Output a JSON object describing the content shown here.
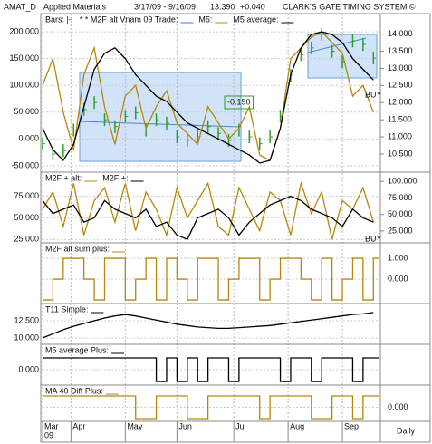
{
  "header": {
    "symbol": "AMAT_D",
    "name": "Applied Materials",
    "range": "3/17/09 - 9/16/09",
    "last": "13.390",
    "change": "+0.040",
    "system": "CLARK'S GATE TIMING SYSTEM ©"
  },
  "x_axis": {
    "x": [
      0,
      4,
      8,
      12,
      16,
      20,
      24,
      28,
      32,
      36,
      40,
      44,
      48,
      52,
      56,
      60,
      64,
      68,
      72,
      76,
      80,
      84,
      88,
      92,
      96,
      100,
      104,
      108,
      112,
      116,
      120,
      124,
      128
    ],
    "xlim": [
      0,
      130
    ],
    "xticks": [
      {
        "value": 0,
        "label": "Mar"
      },
      {
        "value": 11,
        "label": "Apr"
      },
      {
        "value": 32,
        "label": "May"
      },
      {
        "value": 52,
        "label": "Jun"
      },
      {
        "value": 74,
        "label": "Jul"
      },
      {
        "value": 95,
        "label": "Aug"
      },
      {
        "value": 116,
        "label": "Sep"
      }
    ],
    "year": "09",
    "period": "Daily",
    "grid": true
  },
  "chart_data": [
    {
      "type": "line",
      "ylim": [
        -62,
        234
      ],
      "ytick_side": "left",
      "yticks": [
        {
          "value": 200,
          "label": "200.000"
        },
        {
          "value": 150,
          "label": "150.000"
        },
        {
          "value": 100,
          "label": "100.000"
        },
        {
          "value": 50,
          "label": "50.000"
        },
        {
          "value": 0,
          "label": "0.000"
        },
        {
          "value": -50,
          "label": "-50.000"
        }
      ],
      "y2lim": [
        9.97,
        14.6
      ],
      "y2ticks": [
        {
          "value": 14,
          "label": "14.000"
        },
        {
          "value": 13.5,
          "label": "13.500"
        },
        {
          "value": 13,
          "label": "13.000"
        },
        {
          "value": 12.5,
          "label": "12.500"
        },
        {
          "value": 12,
          "label": "12.000"
        },
        {
          "value": 11.5,
          "label": "11.500"
        },
        {
          "value": 11,
          "label": "11.000"
        },
        {
          "value": 10.5,
          "label": "10.500"
        }
      ],
      "legend_extra": [
        "* * M2F alt Vnam 09 Trade:"
      ],
      "annotations": [
        "-0.190",
        "BUY"
      ],
      "series": [
        {
          "name": "Bars: |-",
          "style": "bars",
          "axis": "y2",
          "color": "#2e9e2e",
          "values": [
            10.8,
            10.5,
            10.6,
            11.2,
            11.8,
            12.0,
            11.5,
            11.3,
            11.6,
            11.7,
            11.2,
            11.5,
            11.4,
            11.0,
            10.9,
            11.0,
            11.3,
            11.1,
            10.9,
            11.2,
            11.0,
            10.8,
            11.0,
            11.6,
            12.8,
            13.4,
            13.6,
            14.0,
            13.5,
            13.2,
            13.8,
            13.7,
            13.3
          ]
        },
        {
          "name": "M5:",
          "style": "line",
          "color": "#b8860b",
          "values": [
            100,
            150,
            50,
            -20,
            120,
            170,
            60,
            -10,
            80,
            100,
            20,
            60,
            90,
            30,
            10,
            -10,
            60,
            30,
            0,
            20,
            60,
            -30,
            -40,
            20,
            150,
            170,
            190,
            200,
            180,
            160,
            80,
            100,
            50
          ]
        },
        {
          "name": "M5 average:",
          "style": "line",
          "color": "#000000",
          "values": [
            20,
            -20,
            -40,
            -10,
            60,
            130,
            160,
            170,
            150,
            120,
            100,
            80,
            70,
            50,
            30,
            20,
            10,
            0,
            -10,
            -20,
            -30,
            -45,
            -40,
            20,
            120,
            170,
            195,
            200,
            195,
            180,
            150,
            130,
            110
          ]
        }
      ]
    },
    {
      "type": "line",
      "ylim": [
        21,
        103
      ],
      "ytick_side": "left",
      "yticks": [
        {
          "value": 75,
          "label": "75.000"
        },
        {
          "value": 50,
          "label": "50.000"
        },
        {
          "value": 25,
          "label": "25.000"
        }
      ],
      "y2lim": [
        7,
        114
      ],
      "y2ticks": [
        {
          "value": 100,
          "label": "100.000"
        },
        {
          "value": 75,
          "label": "75.000"
        },
        {
          "value": 50,
          "label": "50.000"
        },
        {
          "value": 25,
          "label": "25.000"
        }
      ],
      "annotations": [
        "BUY"
      ],
      "series": [
        {
          "name": "M2F + alt:",
          "style": "line",
          "color": "#b8860b",
          "values": [
            60,
            80,
            40,
            90,
            30,
            70,
            85,
            45,
            90,
            35,
            80,
            60,
            30,
            85,
            50,
            70,
            90,
            40,
            30,
            85,
            60,
            35,
            80,
            70,
            30,
            90,
            55,
            80,
            25,
            70,
            60,
            85,
            45
          ]
        },
        {
          "name": "M2F +:",
          "style": "line",
          "color": "#000000",
          "values": [
            70,
            55,
            60,
            65,
            45,
            50,
            70,
            60,
            55,
            50,
            60,
            40,
            45,
            30,
            25,
            50,
            55,
            60,
            50,
            30,
            45,
            55,
            65,
            70,
            75,
            70,
            60,
            55,
            50,
            40,
            60,
            50,
            45
          ]
        }
      ]
    },
    {
      "type": "line",
      "ylim": [
        -1.17,
        1.74
      ],
      "ytick_side": "right",
      "yticks": [
        {
          "value": 1,
          "label": "1.000"
        },
        {
          "value": 0,
          "label": "0.000"
        }
      ],
      "series": [
        {
          "name": "M2F alt sum plus:",
          "style": "step",
          "color": "#b8860b",
          "values": [
            -1,
            0,
            1,
            1,
            0,
            -1,
            1,
            1,
            -1,
            0,
            1,
            -1,
            1,
            0,
            -1,
            1,
            1,
            -1,
            0,
            1,
            1,
            -1,
            0,
            1,
            1,
            0,
            -1,
            1,
            -1,
            0,
            1,
            -1,
            1
          ]
        }
      ]
    },
    {
      "type": "line",
      "ylim": [
        9.08,
        15
      ],
      "ytick_side": "left",
      "yticks": [
        {
          "value": 12.5,
          "label": "12.500"
        },
        {
          "value": 10,
          "label": "10.000"
        }
      ],
      "series": [
        {
          "name": "T11 Simple:",
          "style": "line",
          "color": "#000000",
          "values": [
            10,
            10.6,
            11.2,
            11.7,
            12.1,
            12.5,
            12.9,
            13.2,
            13.4,
            13.2,
            12.9,
            12.6,
            12.3,
            12.0,
            11.8,
            11.6,
            11.5,
            11.4,
            11.4,
            11.5,
            11.6,
            11.7,
            11.8,
            12.0,
            12.2,
            12.4,
            12.6,
            12.8,
            13.0,
            13.2,
            13.4,
            13.5,
            13.7
          ]
        }
      ]
    },
    {
      "type": "line",
      "ylim": [
        -1.3,
        2.15
      ],
      "ytick_side": "left",
      "yticks": [
        {
          "value": 0,
          "label": "0.000"
        }
      ],
      "series": [
        {
          "name": "M5 average Plus:",
          "style": "step",
          "color": "#000000",
          "values": [
            1,
            1,
            1,
            1,
            1,
            1,
            1,
            1,
            1,
            1,
            1,
            -1,
            1,
            -1,
            1,
            -1,
            1,
            1,
            -1,
            1,
            1,
            1,
            1,
            -1,
            1,
            1,
            -1,
            1,
            1,
            1,
            -1,
            1,
            1
          ]
        }
      ]
    },
    {
      "type": "line",
      "ylim": [
        -1.24,
        1.96
      ],
      "ytick_side": "right",
      "yticks": [
        {
          "value": 0,
          "label": "0.000"
        }
      ],
      "series": [
        {
          "name": "MA 40 Diff Plus:",
          "style": "step",
          "color": "#b8860b",
          "values": [
            1,
            1,
            1,
            1,
            1,
            1,
            1,
            1,
            1,
            -1,
            -1,
            1,
            1,
            1,
            -1,
            -1,
            1,
            1,
            1,
            1,
            1,
            -1,
            1,
            1,
            1,
            1,
            -1,
            -1,
            1,
            1,
            -1,
            1,
            1
          ]
        }
      ]
    }
  ]
}
